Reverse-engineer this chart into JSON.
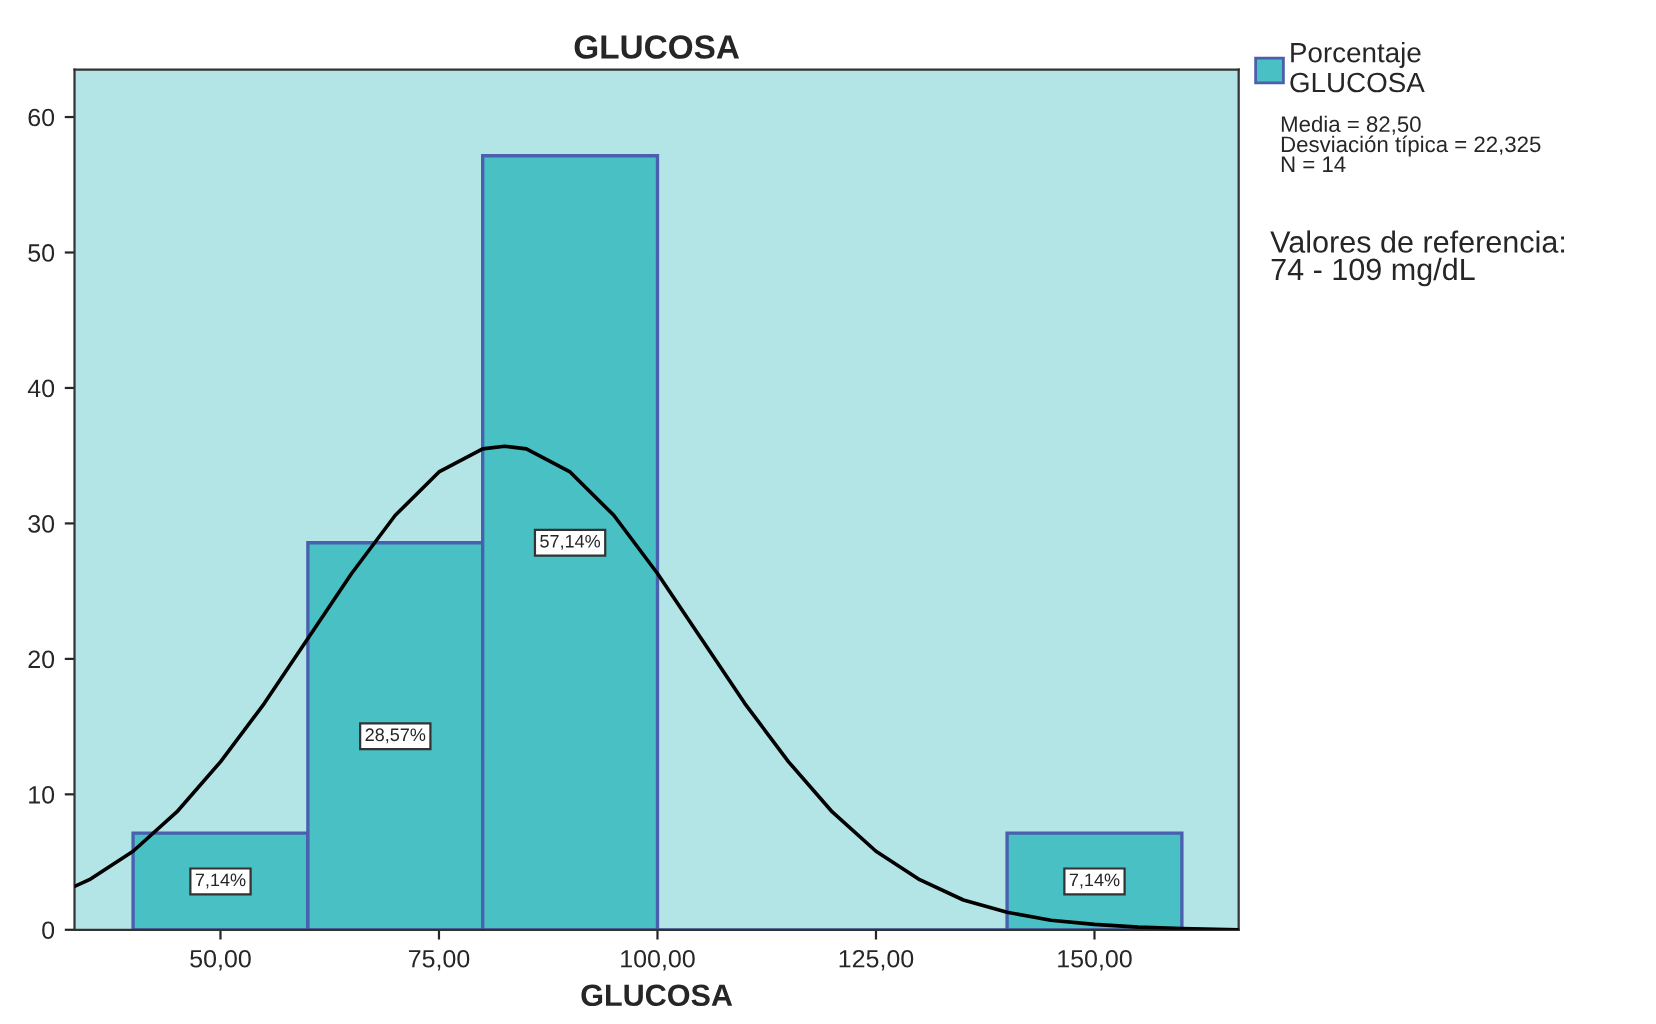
{
  "chart_data": {
    "type": "histogram",
    "title": "GLUCOSA",
    "xlabel": "GLUCOSA",
    "bins": [
      40,
      60,
      80,
      100,
      120,
      140,
      160
    ],
    "series": [
      {
        "name": "Porcentaje\nGLUCOSA",
        "color": "#48c0c4",
        "values": [
          7.14,
          28.57,
          57.14,
          0,
          0,
          7.14
        ],
        "value_labels": [
          "7,14%",
          "28,57%",
          "57,14%",
          null,
          null,
          "7,14%"
        ]
      },
      {
        "type": "line",
        "color": "#000000",
        "x": [
          33.3,
          35,
          40,
          45,
          50,
          55,
          60,
          65,
          70,
          75,
          80,
          82.5,
          85,
          90,
          95,
          100,
          105,
          110,
          115,
          120,
          125,
          130,
          135,
          140,
          145,
          150,
          155,
          160,
          166.5
        ],
        "values": [
          3.2,
          3.7,
          5.8,
          8.7,
          12.4,
          16.7,
          21.5,
          26.3,
          30.6,
          33.8,
          35.5,
          35.7,
          35.5,
          33.8,
          30.6,
          26.3,
          21.5,
          16.7,
          12.4,
          8.7,
          5.8,
          3.7,
          2.2,
          1.3,
          0.7,
          0.4,
          0.2,
          0.1,
          0.0
        ]
      }
    ],
    "xlim": [
      33.3,
      166.5
    ],
    "ylim": [
      0,
      63.5
    ],
    "xticks": [
      {
        "value": 50,
        "label": "50,00"
      },
      {
        "value": 75,
        "label": "75,00"
      },
      {
        "value": 100,
        "label": "100,00"
      },
      {
        "value": 125,
        "label": "125,00"
      },
      {
        "value": 150,
        "label": "150,00"
      }
    ],
    "yticks": [
      0,
      10,
      20,
      30,
      40,
      50,
      60
    ],
    "grid": false,
    "legend": "right",
    "marker": "none",
    "line_style": "solid",
    "annotations": [
      "Media = 82,50\nDesviación típica = 22,325\nN = 14",
      "Valores de referencia:\n74 - 109 mg/dL"
    ]
  }
}
